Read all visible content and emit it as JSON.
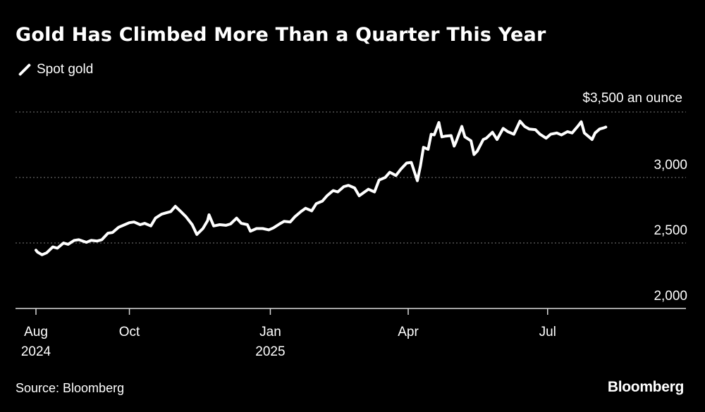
{
  "header": {
    "title": "Gold Has Climbed More Than a Quarter This Year",
    "legend_label": "Spot gold"
  },
  "footer": {
    "source": "Source: Bloomberg",
    "brand": "Bloomberg"
  },
  "chart_data": {
    "type": "line",
    "title": "Gold Has Climbed More Than a Quarter This Year",
    "xlabel": "",
    "ylabel": "",
    "y_unit_label": "$3,500 an ounce",
    "ylim": [
      2000,
      3500
    ],
    "yticks": [
      {
        "value": 3000,
        "label": "3,000"
      },
      {
        "value": 2500,
        "label": "2,500"
      },
      {
        "value": 2000,
        "label": "2,000"
      }
    ],
    "xlim": [
      "2024-08-01",
      "2025-08-12"
    ],
    "xticks": [
      {
        "date": "2024-08-01",
        "label": "Aug",
        "sublabel": "2024"
      },
      {
        "date": "2024-10-01",
        "label": "Oct",
        "sublabel": ""
      },
      {
        "date": "2025-01-01",
        "label": "Jan",
        "sublabel": "2025"
      },
      {
        "date": "2025-04-01",
        "label": "Apr",
        "sublabel": ""
      },
      {
        "date": "2025-07-01",
        "label": "Jul",
        "sublabel": ""
      }
    ],
    "grid": true,
    "legend_position": "top-left",
    "line_color": "#ffffff",
    "series": [
      {
        "name": "Spot gold",
        "points": [
          [
            "2024-08-01",
            2445
          ],
          [
            "2024-08-02",
            2430
          ],
          [
            "2024-08-05",
            2410
          ],
          [
            "2024-08-08",
            2425
          ],
          [
            "2024-08-12",
            2470
          ],
          [
            "2024-08-15",
            2460
          ],
          [
            "2024-08-19",
            2500
          ],
          [
            "2024-08-22",
            2490
          ],
          [
            "2024-08-26",
            2520
          ],
          [
            "2024-08-29",
            2525
          ],
          [
            "2024-09-03",
            2505
          ],
          [
            "2024-09-06",
            2520
          ],
          [
            "2024-09-10",
            2515
          ],
          [
            "2024-09-13",
            2525
          ],
          [
            "2024-09-17",
            2575
          ],
          [
            "2024-09-20",
            2580
          ],
          [
            "2024-09-24",
            2620
          ],
          [
            "2024-09-27",
            2635
          ],
          [
            "2024-10-01",
            2655
          ],
          [
            "2024-10-04",
            2660
          ],
          [
            "2024-10-08",
            2640
          ],
          [
            "2024-10-11",
            2650
          ],
          [
            "2024-10-15",
            2630
          ],
          [
            "2024-10-18",
            2690
          ],
          [
            "2024-10-22",
            2720
          ],
          [
            "2024-10-25",
            2730
          ],
          [
            "2024-10-28",
            2740
          ],
          [
            "2024-10-31",
            2780
          ],
          [
            "2024-11-04",
            2735
          ],
          [
            "2024-11-07",
            2700
          ],
          [
            "2024-11-11",
            2640
          ],
          [
            "2024-11-14",
            2565
          ],
          [
            "2024-11-18",
            2610
          ],
          [
            "2024-11-21",
            2670
          ],
          [
            "2024-11-22",
            2715
          ],
          [
            "2024-11-25",
            2630
          ],
          [
            "2024-11-29",
            2640
          ],
          [
            "2024-12-03",
            2635
          ],
          [
            "2024-12-06",
            2645
          ],
          [
            "2024-12-10",
            2690
          ],
          [
            "2024-12-13",
            2650
          ],
          [
            "2024-12-17",
            2640
          ],
          [
            "2024-12-19",
            2590
          ],
          [
            "2024-12-23",
            2610
          ],
          [
            "2024-12-27",
            2610
          ],
          [
            "2024-12-31",
            2600
          ],
          [
            "2025-01-03",
            2615
          ],
          [
            "2025-01-07",
            2645
          ],
          [
            "2025-01-10",
            2665
          ],
          [
            "2025-01-14",
            2660
          ],
          [
            "2025-01-17",
            2700
          ],
          [
            "2025-01-21",
            2740
          ],
          [
            "2025-01-24",
            2765
          ],
          [
            "2025-01-28",
            2745
          ],
          [
            "2025-01-31",
            2800
          ],
          [
            "2025-02-04",
            2820
          ],
          [
            "2025-02-07",
            2860
          ],
          [
            "2025-02-11",
            2900
          ],
          [
            "2025-02-14",
            2890
          ],
          [
            "2025-02-18",
            2930
          ],
          [
            "2025-02-21",
            2940
          ],
          [
            "2025-02-25",
            2920
          ],
          [
            "2025-02-28",
            2860
          ],
          [
            "2025-03-03",
            2885
          ],
          [
            "2025-03-06",
            2910
          ],
          [
            "2025-03-10",
            2890
          ],
          [
            "2025-03-13",
            2980
          ],
          [
            "2025-03-17",
            3000
          ],
          [
            "2025-03-20",
            3040
          ],
          [
            "2025-03-24",
            3015
          ],
          [
            "2025-03-27",
            3060
          ],
          [
            "2025-03-31",
            3110
          ],
          [
            "2025-04-03",
            3115
          ],
          [
            "2025-04-07",
            2975
          ],
          [
            "2025-04-09",
            3090
          ],
          [
            "2025-04-11",
            3230
          ],
          [
            "2025-04-14",
            3215
          ],
          [
            "2025-04-16",
            3330
          ],
          [
            "2025-04-18",
            3325
          ],
          [
            "2025-04-21",
            3420
          ],
          [
            "2025-04-23",
            3310
          ],
          [
            "2025-04-25",
            3315
          ],
          [
            "2025-04-29",
            3320
          ],
          [
            "2025-05-01",
            3240
          ],
          [
            "2025-05-02",
            3265
          ],
          [
            "2025-05-06",
            3390
          ],
          [
            "2025-05-08",
            3310
          ],
          [
            "2025-05-12",
            3280
          ],
          [
            "2025-05-14",
            3175
          ],
          [
            "2025-05-16",
            3200
          ],
          [
            "2025-05-20",
            3290
          ],
          [
            "2025-05-22",
            3300
          ],
          [
            "2025-05-26",
            3345
          ],
          [
            "2025-05-29",
            3290
          ],
          [
            "2025-06-02",
            3375
          ],
          [
            "2025-06-05",
            3350
          ],
          [
            "2025-06-09",
            3330
          ],
          [
            "2025-06-13",
            3430
          ],
          [
            "2025-06-16",
            3390
          ],
          [
            "2025-06-19",
            3370
          ],
          [
            "2025-06-23",
            3365
          ],
          [
            "2025-06-26",
            3330
          ],
          [
            "2025-06-30",
            3300
          ],
          [
            "2025-07-03",
            3330
          ],
          [
            "2025-07-07",
            3340
          ],
          [
            "2025-07-10",
            3325
          ],
          [
            "2025-07-14",
            3350
          ],
          [
            "2025-07-17",
            3340
          ],
          [
            "2025-07-21",
            3395
          ],
          [
            "2025-07-23",
            3425
          ],
          [
            "2025-07-25",
            3340
          ],
          [
            "2025-07-28",
            3310
          ],
          [
            "2025-07-30",
            3290
          ],
          [
            "2025-08-01",
            3340
          ],
          [
            "2025-08-04",
            3370
          ],
          [
            "2025-08-07",
            3380
          ],
          [
            "2025-08-08",
            3385
          ]
        ]
      }
    ]
  }
}
